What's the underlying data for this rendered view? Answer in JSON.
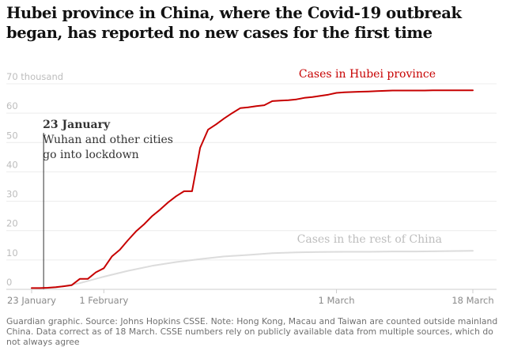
{
  "header": {
    "title": "Hubei province in China, where the Covid-19 outbreak began, has reported no new cases for the first time"
  },
  "chart_data": {
    "type": "line",
    "title": "Hubei province in China, where the Covid-19 outbreak began, has reported no new cases for the first time",
    "xlabel": "",
    "ylabel": "",
    "y_unit_label": "70 thousand",
    "ylim": [
      0,
      70
    ],
    "yticks": [
      0,
      10,
      20,
      30,
      40,
      50,
      60,
      70
    ],
    "ytick_labels": [
      "0",
      "10",
      "20",
      "30",
      "40",
      "50",
      "60",
      "70 thousand"
    ],
    "x_day_range": [
      0,
      55
    ],
    "x_tick_days": [
      0,
      9,
      38,
      55
    ],
    "x_tick_labels": [
      "23 January",
      "1 February",
      "1 March",
      "18 March"
    ],
    "grid": true,
    "colors": {
      "hubei": "#c70000",
      "rest": "#dcdcdc",
      "rest_label": "#bdbdbd",
      "grid": "#ececec",
      "axis": "#cccccc",
      "annotation_line": "#333333"
    },
    "series": [
      {
        "name": "Cases in Hubei province",
        "key": "hubei",
        "day": [
          0,
          1,
          2,
          3,
          4,
          5,
          6,
          7,
          8,
          9,
          10,
          11,
          12,
          13,
          14,
          15,
          16,
          17,
          18,
          19,
          20,
          21,
          22,
          23,
          24,
          25,
          26,
          27,
          28,
          29,
          30,
          31,
          32,
          33,
          34,
          35,
          36,
          37,
          38,
          39,
          40,
          41,
          42,
          43,
          44,
          45,
          46,
          47,
          48,
          49,
          50,
          51,
          52,
          53,
          54,
          55
        ],
        "values": [
          0.44,
          0.44,
          0.55,
          0.73,
          1.05,
          1.42,
          3.55,
          3.55,
          5.8,
          7.2,
          11.2,
          13.5,
          16.7,
          19.7,
          22.1,
          24.9,
          27.1,
          29.6,
          31.7,
          33.4,
          33.4,
          48.2,
          54.4,
          56.2,
          58.2,
          60.0,
          61.7,
          62.0,
          62.4,
          62.7,
          64.1,
          64.3,
          64.4,
          64.7,
          65.2,
          65.5,
          65.9,
          66.3,
          66.9,
          67.1,
          67.2,
          67.3,
          67.4,
          67.5,
          67.6,
          67.7,
          67.7,
          67.7,
          67.7,
          67.7,
          67.8,
          67.8,
          67.8,
          67.8,
          67.8,
          67.8
        ],
        "label_position": "top-right"
      },
      {
        "name": "Cases in the rest of China",
        "key": "rest",
        "day": [
          0,
          3,
          6,
          9,
          12,
          15,
          18,
          21,
          24,
          27,
          30,
          33,
          36,
          39,
          42,
          45,
          48,
          51,
          55
        ],
        "values": [
          0.2,
          0.6,
          2.1,
          4.3,
          6.3,
          8.0,
          9.3,
          10.3,
          11.2,
          11.7,
          12.3,
          12.6,
          12.7,
          12.8,
          12.8,
          12.9,
          12.9,
          13.0,
          13.1
        ],
        "label_position": "middle-right"
      }
    ],
    "annotations": [
      {
        "day": 1,
        "title": "23 January",
        "lines": [
          "Wuhan and other cities",
          "go into lockdown"
        ]
      }
    ]
  },
  "footer": {
    "source": "Guardian graphic. Source: Johns Hopkins CSSE. Note: Hong Kong, Macau and Taiwan are counted outside mainland China. Data correct as of 18 March. CSSE numbers rely on publicly available data from multiple sources, which do not always agree"
  }
}
